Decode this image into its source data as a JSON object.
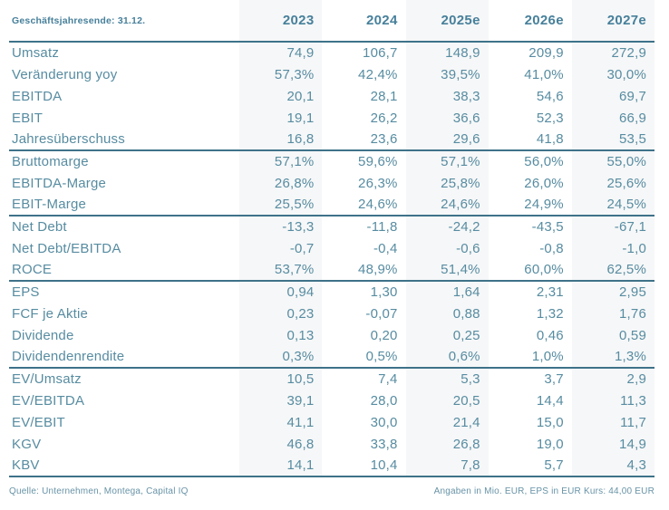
{
  "header": {
    "fiscal_year_label": "Geschäftsjahresende: 31.12.",
    "columns": [
      "2023",
      "2024",
      "2025e",
      "2026e",
      "2027e"
    ]
  },
  "groups": [
    {
      "rows": [
        {
          "label": "Umsatz",
          "values": [
            "74,9",
            "106,7",
            "148,9",
            "209,9",
            "272,9"
          ]
        },
        {
          "label": "Veränderung yoy",
          "values": [
            "57,3%",
            "42,4%",
            "39,5%",
            "41,0%",
            "30,0%"
          ]
        },
        {
          "label": "EBITDA",
          "values": [
            "20,1",
            "28,1",
            "38,3",
            "54,6",
            "69,7"
          ]
        },
        {
          "label": "EBIT",
          "values": [
            "19,1",
            "26,2",
            "36,6",
            "52,3",
            "66,9"
          ]
        },
        {
          "label": "Jahresüberschuss",
          "values": [
            "16,8",
            "23,6",
            "29,6",
            "41,8",
            "53,5"
          ]
        }
      ]
    },
    {
      "rows": [
        {
          "label": "Bruttomarge",
          "values": [
            "57,1%",
            "59,6%",
            "57,1%",
            "56,0%",
            "55,0%"
          ]
        },
        {
          "label": "EBITDA-Marge",
          "values": [
            "26,8%",
            "26,3%",
            "25,8%",
            "26,0%",
            "25,6%"
          ]
        },
        {
          "label": "EBIT-Marge",
          "values": [
            "25,5%",
            "24,6%",
            "24,6%",
            "24,9%",
            "24,5%"
          ]
        }
      ]
    },
    {
      "rows": [
        {
          "label": "Net Debt",
          "values": [
            "-13,3",
            "-11,8",
            "-24,2",
            "-43,5",
            "-67,1"
          ]
        },
        {
          "label": "Net Debt/EBITDA",
          "values": [
            "-0,7",
            "-0,4",
            "-0,6",
            "-0,8",
            "-1,0"
          ]
        },
        {
          "label": "ROCE",
          "values": [
            "53,7%",
            "48,9%",
            "51,4%",
            "60,0%",
            "62,5%"
          ]
        }
      ]
    },
    {
      "rows": [
        {
          "label": "EPS",
          "values": [
            "0,94",
            "1,30",
            "1,64",
            "2,31",
            "2,95"
          ]
        },
        {
          "label": "FCF je Aktie",
          "values": [
            "0,23",
            "-0,07",
            "0,88",
            "1,32",
            "1,76"
          ]
        },
        {
          "label": "Dividende",
          "values": [
            "0,13",
            "0,20",
            "0,25",
            "0,46",
            "0,59"
          ]
        },
        {
          "label": "Dividendenrendite",
          "values": [
            "0,3%",
            "0,5%",
            "0,6%",
            "1,0%",
            "1,3%"
          ]
        }
      ]
    },
    {
      "rows": [
        {
          "label": "EV/Umsatz",
          "values": [
            "10,5",
            "7,4",
            "5,3",
            "3,7",
            "2,9"
          ]
        },
        {
          "label": "EV/EBITDA",
          "values": [
            "39,1",
            "28,0",
            "20,5",
            "14,4",
            "11,3"
          ]
        },
        {
          "label": "EV/EBIT",
          "values": [
            "41,1",
            "30,0",
            "21,4",
            "15,0",
            "11,7"
          ]
        },
        {
          "label": "KGV",
          "values": [
            "46,8",
            "33,8",
            "26,8",
            "19,0",
            "14,9"
          ]
        },
        {
          "label": "KBV",
          "values": [
            "14,1",
            "10,4",
            "7,8",
            "5,7",
            "4,3"
          ]
        }
      ]
    }
  ],
  "footer": {
    "source": "Quelle: Unternehmen, Montega, Capital IQ",
    "note": "Angaben in Mio. EUR, EPS in EUR Kurs: 44,00 EUR"
  },
  "colors": {
    "rule": "#3e7289",
    "header_text": "#47809b",
    "body_text": "#578ca1",
    "footer_text": "#6793a6",
    "shaded_column": "#f6f7f8"
  }
}
